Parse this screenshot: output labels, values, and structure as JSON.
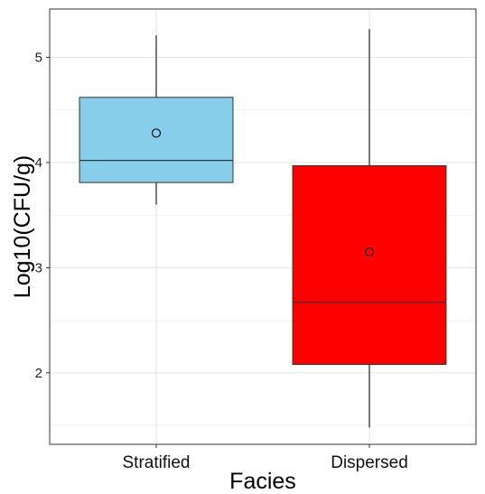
{
  "chart_data": {
    "type": "boxplot",
    "title": "",
    "xlabel": "Facies",
    "ylabel": "Log10(CFU/g)",
    "ylim": [
      1.32,
      5.46
    ],
    "y_ticks": [
      2,
      3,
      4,
      5
    ],
    "grid": true,
    "legend": "none",
    "categories": [
      "Stratified",
      "Dispersed"
    ],
    "boxes": [
      {
        "category": "Stratified",
        "color": "#87CEEB",
        "min": 3.6,
        "q1": 3.81,
        "median": 4.02,
        "q3": 4.62,
        "max": 5.21,
        "mean": 4.28
      },
      {
        "category": "Dispersed",
        "color": "#FF0000",
        "min": 1.48,
        "q1": 2.08,
        "median": 2.67,
        "q3": 3.97,
        "max": 5.27,
        "mean": 3.15
      }
    ]
  }
}
